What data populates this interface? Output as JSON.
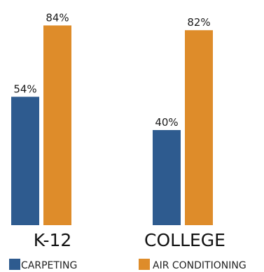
{
  "chart_data": {
    "type": "bar",
    "title": "",
    "xlabel": "",
    "ylabel": "",
    "ylim": [
      0,
      100
    ],
    "unit": "%",
    "grid": false,
    "legend_position": "bottom",
    "categories": [
      "K-12",
      "COLLEGE"
    ],
    "series": [
      {
        "name": "CARPETING",
        "values": [
          54,
          40
        ],
        "color": "#2e5b8f"
      },
      {
        "name": "AIR CONDITIONING",
        "values": [
          84,
          82
        ],
        "color": "#de8c2a"
      }
    ],
    "data_labels": [
      [
        "54%",
        "40%"
      ],
      [
        "84%",
        "82%"
      ]
    ]
  }
}
